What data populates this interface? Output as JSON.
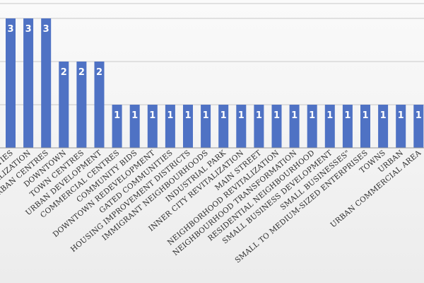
{
  "chart_data": {
    "type": "bar",
    "title": "",
    "xlabel": "",
    "ylabel": "",
    "ylim": [
      0,
      3.5
    ],
    "grid": true,
    "legend": "none",
    "bar_color": "#4f72c4",
    "label_color": "#ffffff",
    "categories": [
      "ITIES",
      "ALIZATION",
      "URBAN CENTRES",
      "DOWNTOWN",
      "TOWN CENTRES",
      "URBAN DEVELOPMENT",
      "COMMERCIAL CENTRES",
      "COMMUNITY BIDS",
      "DOWNTOWN REDEVELOPMENT",
      "GATED COMMUNITIES",
      "HOUSING IMPROVEMENT DISTRICTS",
      "IMMIGRANT NEIGHBOURHOODS",
      "INDUSTRIAL PARK",
      "INNER CITY REVITALIZATION",
      "MAIN STREET",
      "NEIGHBORHOOD REVITALIZATION",
      "NEIGHBOURHOOD TRANSFORMATION",
      "RESIDENTIAL NEIGHBOURHOOD",
      "SMALL BUSINESS DEVELOPMENT",
      "SMALL BUSINESSES\"",
      "SMALL TO MEDIUM-SIZED ENTERPRISES",
      "TOWNS",
      "URBAN",
      "URBAN COMMERCIAL AREA"
    ],
    "values": [
      3,
      3,
      3,
      2,
      2,
      2,
      1,
      1,
      1,
      1,
      1,
      1,
      1,
      1,
      1,
      1,
      1,
      1,
      1,
      1,
      1,
      1,
      1,
      1
    ]
  }
}
